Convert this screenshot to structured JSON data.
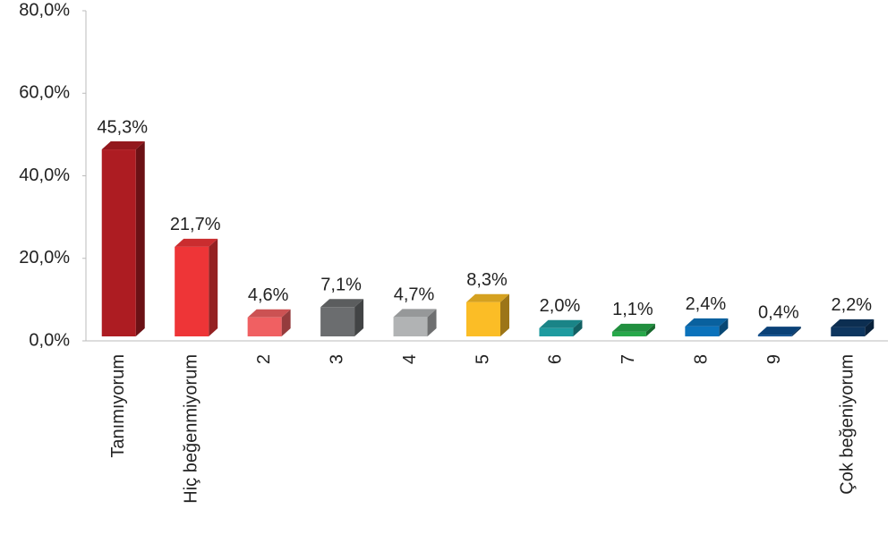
{
  "chart_data": {
    "type": "bar3d",
    "categories": [
      "Tanımıyorum",
      "Hiç beğenmiyorum",
      "2",
      "3",
      "4",
      "5",
      "6",
      "7",
      "8",
      "9",
      "Çok beğeniyorum"
    ],
    "values": [
      45.3,
      21.7,
      4.6,
      7.1,
      4.7,
      8.3,
      2.0,
      1.1,
      2.4,
      0.4,
      2.2
    ],
    "value_labels": [
      "45,3%",
      "21,7%",
      "4,6%",
      "7,1%",
      "4,7%",
      "8,3%",
      "2,0%",
      "1,1%",
      "2,4%",
      "0,4%",
      "2,2%"
    ],
    "colors": [
      "#ad1c22",
      "#ee3537",
      "#f06062",
      "#6b6d6f",
      "#b1b3b4",
      "#fbbd26",
      "#1e9b9f",
      "#27a84a",
      "#0b72bb",
      "#0c4c8c",
      "#0e365f"
    ],
    "ylim": [
      0,
      80
    ],
    "yticks": [
      {
        "value": 0,
        "label": "0,0%"
      },
      {
        "value": 20,
        "label": "20,0%"
      },
      {
        "value": 40,
        "label": "40,0%"
      },
      {
        "value": 60,
        "label": "60,0%"
      },
      {
        "value": 80,
        "label": "80,0%"
      }
    ]
  }
}
